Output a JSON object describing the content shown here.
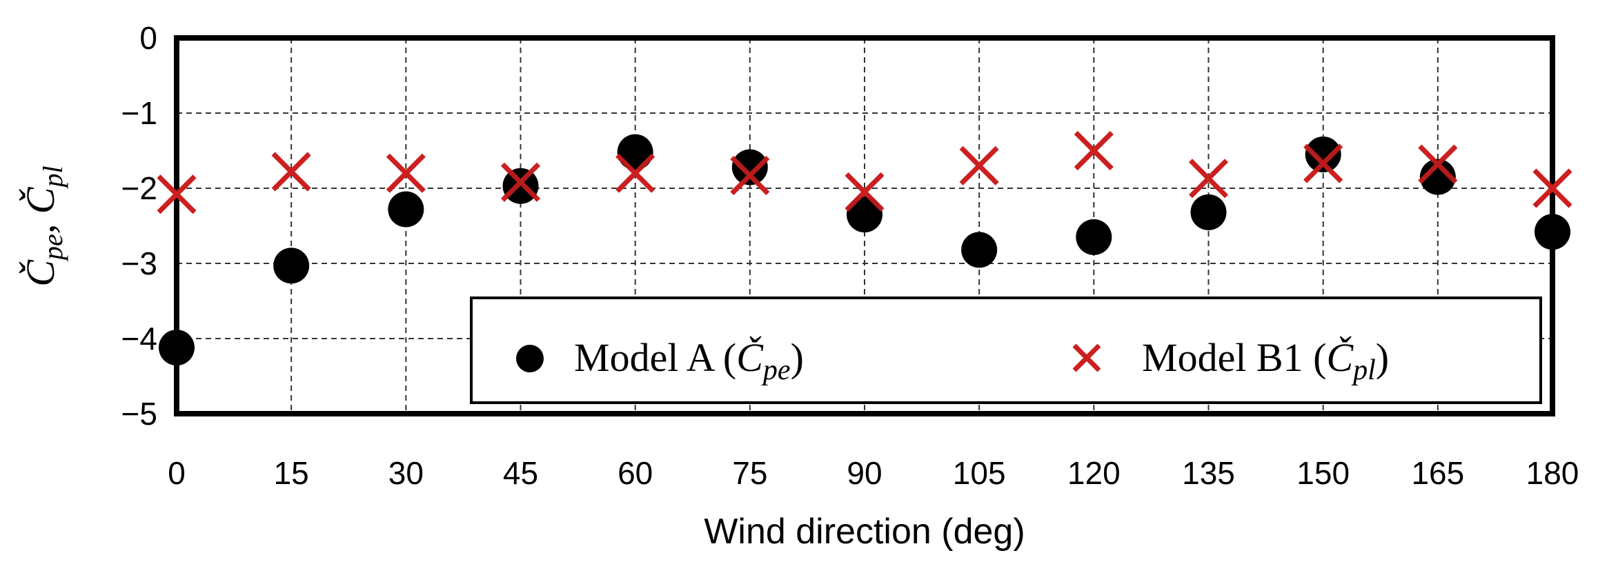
{
  "chart_data": {
    "type": "scatter",
    "xlabel": "Wind direction (deg)",
    "ylabel": "Č_pe, Č_pl",
    "x": [
      0,
      15,
      30,
      45,
      60,
      75,
      90,
      105,
      120,
      135,
      150,
      165,
      180
    ],
    "xticks": [
      "0",
      "15",
      "30",
      "45",
      "60",
      "75",
      "90",
      "105",
      "120",
      "135",
      "150",
      "165",
      "180"
    ],
    "yticks": [
      "0",
      "−1",
      "−2",
      "−3",
      "−4",
      "−5"
    ],
    "ytick_values": [
      0,
      -1,
      -2,
      -3,
      -4,
      -5
    ],
    "xlim": [
      0,
      180
    ],
    "ylim": [
      -5,
      0
    ],
    "grid": true,
    "legend_position": "bottom-right",
    "series": [
      {
        "name": "Model A (Č_pe)",
        "marker": "circle",
        "color": "#000000",
        "values": [
          -4.12,
          -3.03,
          -2.28,
          -1.97,
          -1.52,
          -1.72,
          -2.35,
          -2.82,
          -2.65,
          -2.32,
          -1.55,
          -1.85,
          -2.58
        ]
      },
      {
        "name": "Model B1 (Č_pl)",
        "marker": "x",
        "color": "#cc1f1f",
        "values": [
          -2.08,
          -1.78,
          -1.8,
          -1.92,
          -1.8,
          -1.83,
          -2.05,
          -1.7,
          -1.5,
          -1.87,
          -1.67,
          -1.68,
          -2.0
        ]
      }
    ]
  },
  "legend": {
    "model_a_prefix": "Model A (",
    "model_a_symbol": "Č",
    "model_a_subscript": "pe",
    "model_a_suffix": ")",
    "model_b_prefix": "Model B1 (",
    "model_b_symbol": "Č",
    "model_b_subscript": "pl",
    "model_b_suffix": ")"
  },
  "ylabel_parts": {
    "sym1": "Č",
    "sub1": "pe",
    "sep": ", ",
    "sym2": "Č",
    "sub2": "pl"
  }
}
